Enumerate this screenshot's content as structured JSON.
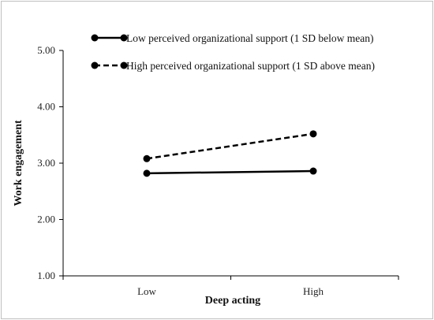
{
  "chart_data": {
    "type": "line",
    "categories": [
      "Low",
      "High"
    ],
    "xlabel": "Deep acting",
    "ylabel": "Work engagement",
    "ylim": [
      1.0,
      5.0
    ],
    "yticks": [
      "1.00",
      "2.00",
      "3.00",
      "4.00",
      "5.00"
    ],
    "grid": false,
    "legend_position": "top",
    "series": [
      {
        "name": "Low perceived organizational support (1 SD below mean)",
        "values": [
          2.82,
          2.86
        ],
        "line_style": "solid",
        "color": "#000000"
      },
      {
        "name": "High perceived organizational support (1 SD above mean)",
        "values": [
          3.08,
          3.52
        ],
        "line_style": "dashed",
        "color": "#000000"
      }
    ]
  }
}
